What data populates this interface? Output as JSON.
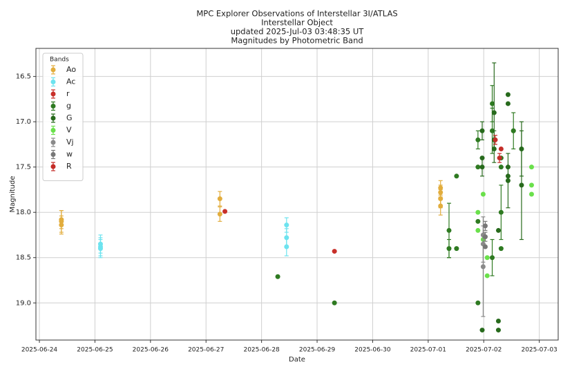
{
  "chart_data": {
    "type": "scatter",
    "title": [
      "MPC Explorer Observations of  Interstellar  3I/ATLAS",
      "Interstellar Object",
      "updated 2025-Jul-03 03:48:35 UT",
      "Magnitudes by Photometric Band"
    ],
    "x_label": "Date",
    "y_label": "Magnitude",
    "legend_title": "Bands",
    "legend": "upper left",
    "grid": true,
    "xlim": [
      "2025-06-23T22:30",
      "2025-07-03T08:10"
    ],
    "xticks": [
      "2025-06-24",
      "2025-06-25",
      "2025-06-26",
      "2025-06-27",
      "2025-06-28",
      "2025-06-29",
      "2025-06-30",
      "2025-07-01",
      "2025-07-02",
      "2025-07-03"
    ],
    "ylim": [
      19.41,
      16.19
    ],
    "yticks": [
      16.5,
      {
        "value": 17,
        "label": "17.0"
      },
      17.5,
      {
        "value": 18,
        "label": "18.0"
      },
      18.5,
      {
        "value": 19,
        "label": "19.0"
      }
    ],
    "series": [
      {
        "name": "Ao",
        "color": "#e2ad3d",
        "x": [
          "2025-06-24T09:30",
          "2025-06-24T09:30",
          "2025-06-24T09:30",
          "2025-06-27T06:00",
          "2025-06-27T06:00",
          "2025-07-01T05:20",
          "2025-07-01T05:20",
          "2025-07-01T05:20",
          "2025-07-01T05:20"
        ],
        "values": [
          18.08,
          18.14,
          18.1,
          17.85,
          18.02,
          17.73,
          17.78,
          17.85,
          17.93
        ],
        "errors": [
          0.1,
          0.1,
          0.12,
          0.08,
          0.08,
          0.08,
          0.08,
          0.1,
          0.1
        ]
      },
      {
        "name": "Ac",
        "color": "#6de3ef",
        "x": [
          "2025-06-25T02:24",
          "2025-06-25T02:24",
          "2025-06-25T02:24",
          "2025-06-28T10:48",
          "2025-06-28T10:48",
          "2025-06-28T10:48"
        ],
        "values": [
          18.35,
          18.38,
          18.4,
          18.14,
          18.28,
          18.38
        ],
        "errors": [
          0.1,
          0.1,
          0.1,
          0.08,
          0.1,
          0.1
        ]
      },
      {
        "name": "r",
        "color": "#c8302a",
        "x": [
          "2025-06-27T08:10",
          "2025-06-29T07:30"
        ],
        "values": [
          17.99,
          18.43
        ],
        "errors": [
          null,
          null
        ]
      },
      {
        "name": "g",
        "color": "#2e7a21",
        "x": [
          "2025-06-28T07:00",
          "2025-06-29T07:30",
          "2025-07-01T09:00",
          "2025-07-01T09:00",
          "2025-07-01T12:15",
          "2025-07-01T12:15",
          "2025-07-01T21:30",
          "2025-07-01T21:30",
          "2025-07-01T21:30",
          "2025-07-01T21:30",
          "2025-07-02T03:40",
          "2025-07-02T03:40",
          "2025-07-02T03:40",
          "2025-07-02T07:30",
          "2025-07-02T07:30",
          "2025-07-02T07:30",
          "2025-07-02T07:30",
          "2025-07-02T12:50",
          "2025-07-02T12:50"
        ],
        "values": [
          18.71,
          19.0,
          18.2,
          18.4,
          17.6,
          18.4,
          17.2,
          17.5,
          18.1,
          19.0,
          16.8,
          17.1,
          18.5,
          17.4,
          17.5,
          18.0,
          18.4,
          17.1,
          17.1
        ],
        "errors": [
          null,
          null,
          0.3,
          0.1,
          null,
          null,
          0.1,
          null,
          null,
          null,
          0.2,
          0.25,
          0.2,
          null,
          null,
          0.3,
          null,
          0.2,
          null
        ]
      },
      {
        "name": "G",
        "color": "#276a1c",
        "x": [
          "2025-07-01T23:20",
          "2025-07-01T23:20",
          "2025-07-01T23:20",
          "2025-07-01T23:20",
          "2025-07-02T04:30",
          "2025-07-02T04:30",
          "2025-07-02T04:30",
          "2025-07-02T06:20",
          "2025-07-02T06:20",
          "2025-07-02T06:20",
          "2025-07-02T10:30",
          "2025-07-02T10:30",
          "2025-07-02T10:30",
          "2025-07-02T10:30",
          "2025-07-02T10:30",
          "2025-07-02T16:20",
          "2025-07-02T16:20"
        ],
        "values": [
          17.1,
          17.4,
          17.5,
          19.3,
          16.9,
          17.2,
          17.3,
          18.2,
          19.2,
          19.3,
          16.7,
          16.8,
          17.5,
          17.6,
          17.65,
          17.3,
          17.7
        ],
        "errors": [
          0.1,
          null,
          0.1,
          null,
          0.55,
          0.1,
          null,
          null,
          null,
          null,
          null,
          null,
          null,
          null,
          0.3,
          0.3,
          0.6
        ]
      },
      {
        "name": "V",
        "color": "#6ae04b",
        "x": [
          "2025-07-01T21:30",
          "2025-07-01T21:30",
          "2025-07-01T23:45",
          "2025-07-01T23:45",
          "2025-07-02T01:30",
          "2025-07-02T01:30",
          "2025-07-02T20:40",
          "2025-07-02T20:40",
          "2025-07-02T20:40"
        ],
        "values": [
          18.0,
          18.2,
          17.8,
          18.3,
          18.5,
          18.7,
          17.5,
          17.7,
          17.8
        ],
        "errors": [
          null,
          null,
          null,
          null,
          null,
          null,
          null,
          null,
          null
        ]
      },
      {
        "name": "Vj",
        "color": "#8a8a8a",
        "x": [
          "2025-07-01T23:45",
          "2025-07-01T23:45",
          "2025-07-01T23:45"
        ],
        "values": [
          18.6,
          18.35,
          18.25
        ],
        "errors": [
          0.55,
          0.2,
          null
        ]
      },
      {
        "name": "w",
        "color": "#777777",
        "x": [
          "2025-07-02T00:40",
          "2025-07-02T00:40",
          "2025-07-02T00:40"
        ],
        "values": [
          18.15,
          18.27,
          18.38
        ],
        "errors": [
          0.05,
          0.05,
          null
        ]
      },
      {
        "name": "R",
        "color": "#c42d28",
        "x": [
          "2025-07-02T05:00",
          "2025-07-02T06:50",
          "2025-07-02T07:30"
        ],
        "values": [
          17.2,
          17.4,
          17.3
        ],
        "errors": [
          0.05,
          0.05,
          null
        ]
      }
    ]
  }
}
